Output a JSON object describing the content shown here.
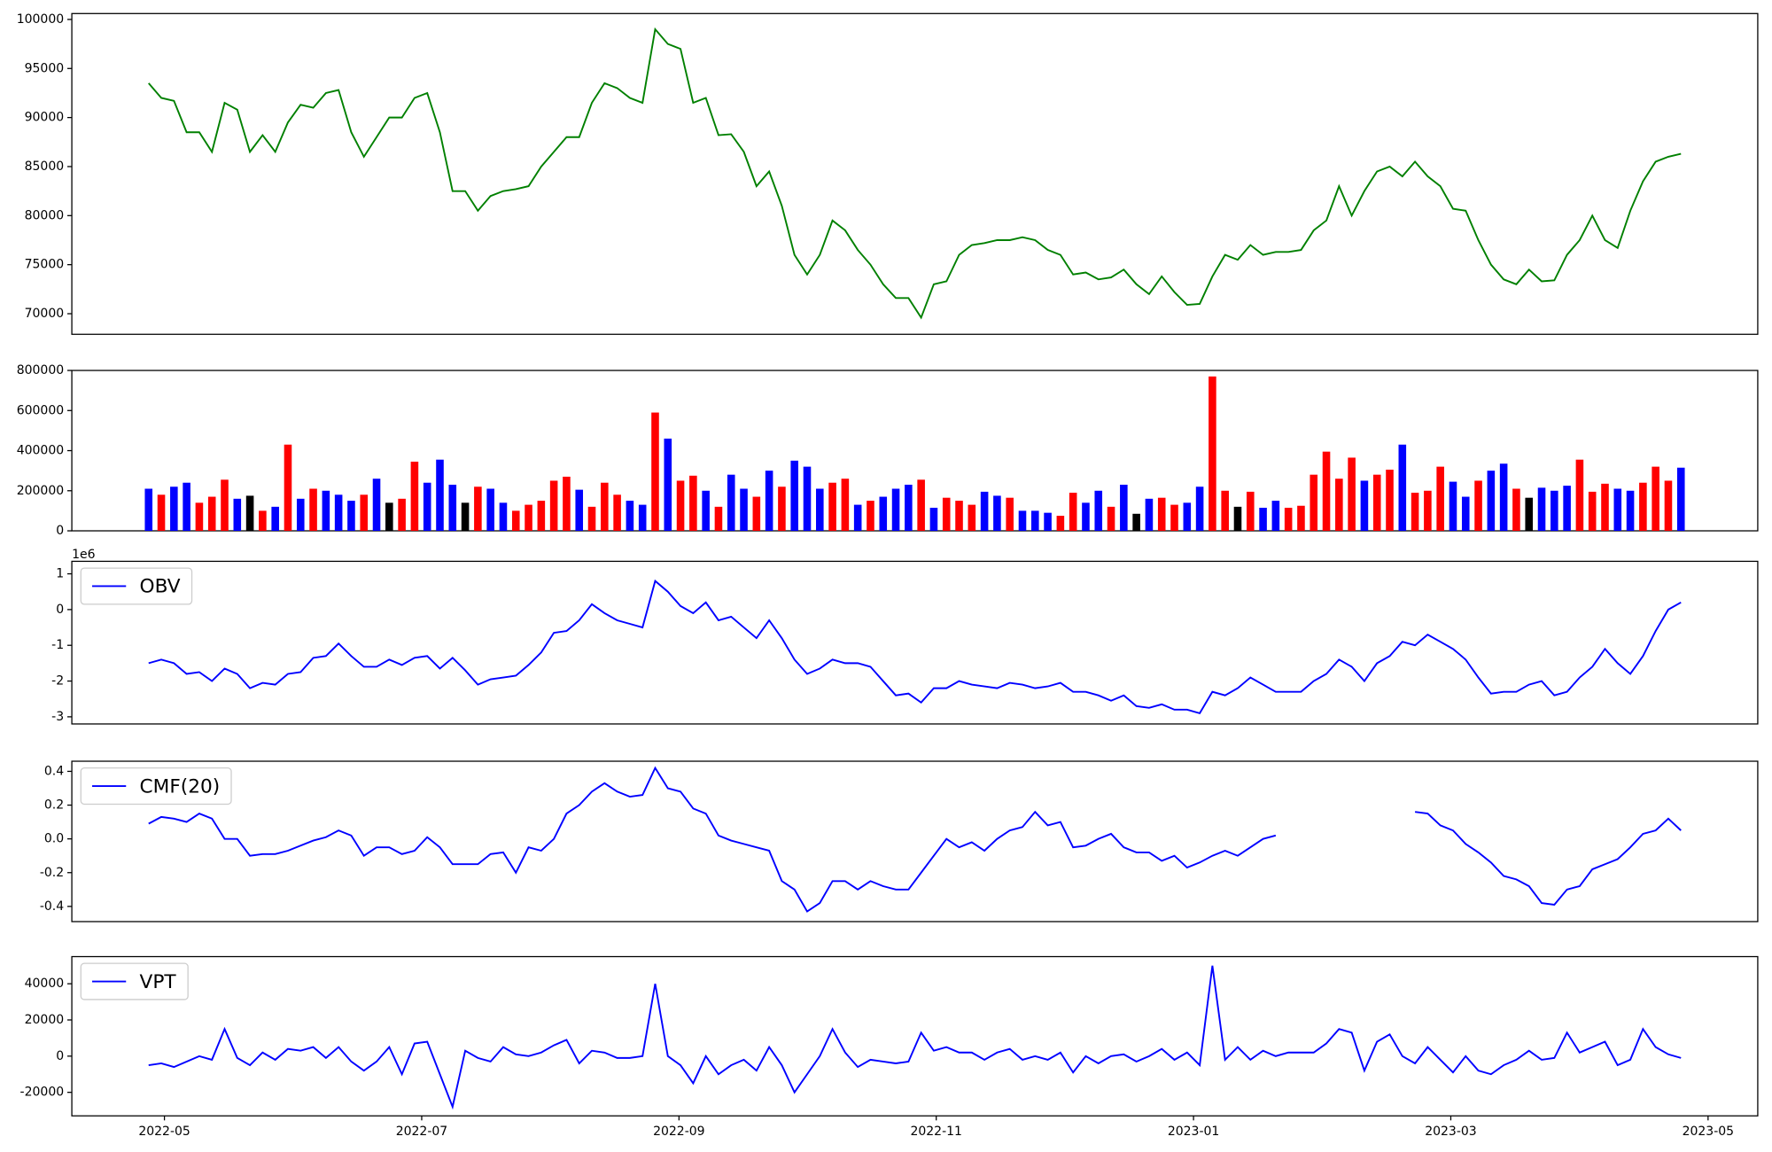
{
  "chart_data": {
    "type": "panels",
    "xticks": [
      "2022-05",
      "2022-07",
      "2022-09",
      "2022-11",
      "2023-01",
      "2023-03",
      "2023-05"
    ],
    "panels": [
      {
        "type": "line",
        "ylim": [
          67900,
          100600
        ],
        "yticks": [
          70000,
          75000,
          80000,
          85000,
          90000,
          95000,
          100000
        ],
        "series": [
          {
            "color": "#008000",
            "values": [
              93500,
              92000,
              91700,
              88500,
              88500,
              86500,
              91500,
              90800,
              86500,
              88200,
              86500,
              89500,
              91300,
              91000,
              92500,
              92800,
              88500,
              86000,
              88000,
              90000,
              90000,
              92000,
              92500,
              88500,
              82500,
              82500,
              80500,
              82000,
              82500,
              82700,
              83000,
              85000,
              86500,
              88000,
              88000,
              91500,
              93500,
              93000,
              92000,
              91500,
              99000,
              97500,
              97000,
              91500,
              92000,
              88200,
              88300,
              86500,
              83000,
              84500,
              81000,
              76000,
              74000,
              76000,
              79500,
              78500,
              76500,
              75000,
              73000,
              71600,
              71600,
              69600,
              73000,
              73300,
              76000,
              77000,
              77200,
              77500,
              77500,
              77800,
              77500,
              76500,
              76000,
              74000,
              74200,
              73500,
              73700,
              74500,
              73000,
              72000,
              73800,
              72200,
              70900,
              71000,
              73800,
              76000,
              75500,
              77000,
              76000,
              76300,
              76300,
              76500,
              78500,
              79500,
              83000,
              80000,
              82500,
              84500,
              85000,
              84000,
              85500,
              84000,
              83000,
              80700,
              80500,
              77500,
              75000,
              73500,
              73000,
              74500,
              73300,
              73400,
              76000,
              77500,
              80000,
              77500,
              76700,
              80500,
              83500,
              85500,
              86000,
              86300
            ]
          }
        ]
      },
      {
        "type": "bar",
        "ylim": [
          0,
          800000
        ],
        "yticks": [
          0,
          200000,
          400000,
          600000,
          800000
        ],
        "values": [
          210000,
          180000,
          220000,
          240000,
          140000,
          170000,
          255000,
          160000,
          175000,
          100000,
          120000,
          430000,
          160000,
          210000,
          200000,
          180000,
          150000,
          180000,
          260000,
          140000,
          160000,
          345000,
          240000,
          355000,
          230000,
          140000,
          220000,
          210000,
          140000,
          100000,
          130000,
          150000,
          250000,
          270000,
          205000,
          120000,
          240000,
          180000,
          150000,
          130000,
          590000,
          460000,
          250000,
          275000,
          200000,
          120000,
          280000,
          210000,
          170000,
          300000,
          220000,
          350000,
          320000,
          210000,
          240000,
          260000,
          130000,
          150000,
          170000,
          210000,
          230000,
          255000,
          115000,
          165000,
          150000,
          130000,
          195000,
          175000,
          165000,
          100000,
          100000,
          90000,
          75000,
          190000,
          140000,
          200000,
          120000,
          230000,
          85000,
          160000,
          165000,
          130000,
          140000,
          220000,
          770000,
          200000,
          120000,
          195000,
          115000,
          150000,
          115000,
          125000,
          280000,
          395000,
          260000,
          365000,
          250000,
          280000,
          305000,
          430000,
          190000,
          200000,
          320000,
          245000,
          170000,
          250000,
          300000,
          335000,
          210000,
          165000,
          215000,
          200000,
          225000,
          355000,
          195000,
          235000,
          210000,
          200000,
          240000,
          320000,
          250000,
          315000
        ],
        "colors": [
          "blue",
          "red",
          "blue",
          "blue",
          "red",
          "red",
          "red",
          "blue",
          "black",
          "red",
          "blue",
          "red",
          "blue",
          "red",
          "blue",
          "blue",
          "blue",
          "red",
          "blue",
          "black",
          "red",
          "red",
          "blue",
          "blue",
          "blue",
          "black",
          "red",
          "blue",
          "blue",
          "red",
          "red",
          "red",
          "red",
          "red",
          "blue",
          "red",
          "red",
          "red",
          "blue",
          "blue",
          "red",
          "blue",
          "red",
          "red",
          "blue",
          "red",
          "blue",
          "blue",
          "red",
          "blue",
          "red",
          "blue",
          "blue",
          "blue",
          "red",
          "red",
          "blue",
          "red",
          "blue",
          "blue",
          "blue",
          "red",
          "blue",
          "red",
          "red",
          "red",
          "blue",
          "blue",
          "red",
          "blue",
          "blue",
          "blue",
          "red",
          "red",
          "blue",
          "blue",
          "red",
          "blue",
          "black",
          "blue",
          "red",
          "red",
          "blue",
          "blue",
          "red",
          "red",
          "black",
          "red",
          "blue",
          "blue",
          "red",
          "red",
          "red",
          "red",
          "red",
          "red",
          "blue",
          "red",
          "red",
          "blue",
          "red",
          "red",
          "red",
          "blue",
          "blue",
          "red",
          "blue",
          "blue",
          "red",
          "black",
          "blue",
          "blue",
          "blue",
          "red",
          "red",
          "red",
          "blue",
          "blue",
          "red",
          "red",
          "red",
          "blue"
        ]
      },
      {
        "type": "line",
        "offset_label": "1e6",
        "ylim": [
          -3.2,
          1.35
        ],
        "yticks": [
          -3,
          -2,
          -1,
          0,
          1
        ],
        "legend": "upper left",
        "series": [
          {
            "name": "OBV",
            "color": "#0000ff",
            "values": [
              -1.5,
              -1.4,
              -1.5,
              -1.8,
              -1.75,
              -2.0,
              -1.65,
              -1.8,
              -2.2,
              -2.05,
              -2.1,
              -1.8,
              -1.75,
              -1.35,
              -1.3,
              -0.95,
              -1.3,
              -1.6,
              -1.6,
              -1.4,
              -1.55,
              -1.35,
              -1.3,
              -1.65,
              -1.35,
              -1.7,
              -2.1,
              -1.95,
              -1.9,
              -1.85,
              -1.55,
              -1.2,
              -0.65,
              -0.6,
              -0.3,
              0.15,
              -0.1,
              -0.3,
              -0.4,
              -0.5,
              0.8,
              0.5,
              0.1,
              -0.1,
              0.2,
              -0.3,
              -0.2,
              -0.5,
              -0.8,
              -0.3,
              -0.8,
              -1.4,
              -1.8,
              -1.65,
              -1.4,
              -1.5,
              -1.5,
              -1.6,
              -2.0,
              -2.4,
              -2.35,
              -2.6,
              -2.2,
              -2.2,
              -2.0,
              -2.1,
              -2.15,
              -2.2,
              -2.05,
              -2.1,
              -2.2,
              -2.15,
              -2.05,
              -2.3,
              -2.3,
              -2.4,
              -2.55,
              -2.4,
              -2.7,
              -2.75,
              -2.65,
              -2.8,
              -2.8,
              -2.9,
              -2.3,
              -2.4,
              -2.2,
              -1.9,
              -2.1,
              -2.3,
              -2.3,
              -2.3,
              -2.0,
              -1.8,
              -1.4,
              -1.6,
              -2.0,
              -1.5,
              -1.3,
              -0.9,
              -1.0,
              -0.7,
              -0.9,
              -1.1,
              -1.4,
              -1.9,
              -2.35,
              -2.3,
              -2.3,
              -2.1,
              -2.0,
              -2.4,
              -2.3,
              -1.9,
              -1.6,
              -1.1,
              -1.5,
              -1.8,
              -1.3,
              -0.6,
              0.0,
              0.2
            ]
          }
        ]
      },
      {
        "type": "line",
        "ylim": [
          -0.49,
          0.46
        ],
        "yticks": [
          -0.4,
          -0.2,
          {
            "value": 0,
            "label": "0.0"
          },
          0.2,
          0.4
        ],
        "legend": "upper left",
        "series": [
          {
            "name": "CMF(20)",
            "color": "#0000ff",
            "values": [
              0.09,
              0.13,
              0.12,
              0.1,
              0.15,
              0.12,
              0.0,
              0.0,
              -0.1,
              -0.09,
              -0.09,
              -0.07,
              -0.04,
              -0.01,
              0.01,
              0.05,
              0.02,
              -0.1,
              -0.05,
              -0.05,
              -0.09,
              -0.07,
              0.01,
              -0.05,
              -0.15,
              -0.15,
              -0.15,
              -0.09,
              -0.08,
              -0.2,
              -0.05,
              -0.07,
              0.0,
              0.15,
              0.2,
              0.28,
              0.33,
              0.28,
              0.25,
              0.26,
              0.42,
              0.3,
              0.28,
              0.18,
              0.15,
              0.02,
              -0.01,
              -0.03,
              -0.05,
              -0.07,
              -0.25,
              -0.3,
              -0.43,
              -0.38,
              -0.25,
              -0.25,
              -0.3,
              -0.25,
              -0.28,
              -0.3,
              -0.3,
              -0.2,
              -0.1,
              0.0,
              -0.05,
              -0.02,
              -0.07,
              0.0,
              0.05,
              0.07,
              0.16,
              0.08,
              0.1,
              -0.05,
              -0.04,
              0.0,
              0.03,
              -0.05,
              -0.08,
              -0.08,
              -0.13,
              -0.1,
              -0.17,
              -0.14,
              -0.1,
              -0.07,
              -0.1,
              -0.05,
              0.0,
              0.02,
              null,
              null,
              null,
              null,
              null,
              null,
              null,
              null,
              null,
              null,
              0.16,
              0.15,
              0.08,
              0.05,
              -0.03,
              -0.08,
              -0.14,
              -0.22,
              -0.24,
              -0.28,
              -0.38,
              -0.39,
              -0.3,
              -0.28,
              -0.18,
              -0.15,
              -0.12,
              -0.05,
              0.03,
              0.05,
              0.12,
              0.05
            ]
          }
        ]
      },
      {
        "type": "line",
        "ylim": [
          -33000,
          55000
        ],
        "yticks": [
          -20000,
          0,
          20000,
          40000
        ],
        "legend": "upper left",
        "series": [
          {
            "name": "VPT",
            "color": "#0000ff",
            "values": [
              -5000,
              -4000,
              -6000,
              -3000,
              0,
              -2000,
              15000,
              -1000,
              -5000,
              2000,
              -2000,
              4000,
              3000,
              5000,
              -1000,
              5000,
              -3000,
              -8000,
              -3000,
              5000,
              -10000,
              7000,
              8000,
              -10000,
              -28000,
              3000,
              -1000,
              -3000,
              5000,
              1000,
              0,
              2000,
              6000,
              9000,
              -4000,
              3000,
              2000,
              -1000,
              -1000,
              0,
              40000,
              0,
              -5000,
              -15000,
              0,
              -10000,
              -5000,
              -2000,
              -8000,
              5000,
              -5000,
              -20000,
              -10000,
              0,
              15000,
              2000,
              -6000,
              -2000,
              -3000,
              -4000,
              -3000,
              13000,
              3000,
              5000,
              2000,
              2000,
              -2000,
              2000,
              4000,
              -2000,
              0,
              -2000,
              2000,
              -9000,
              0,
              -4000,
              0,
              1000,
              -3000,
              0,
              4000,
              -2000,
              2000,
              -5000,
              50000,
              -2000,
              5000,
              -2000,
              3000,
              0,
              2000,
              2000,
              2000,
              7000,
              15000,
              13000,
              -8000,
              8000,
              12000,
              0,
              -4000,
              5000,
              -2000,
              -9000,
              0,
              -8000,
              -10000,
              -5000,
              -2000,
              3000,
              -2000,
              -1000,
              13000,
              2000,
              5000,
              8000,
              -5000,
              -2000,
              15000,
              5000,
              1000,
              -1000
            ]
          }
        ]
      }
    ]
  }
}
